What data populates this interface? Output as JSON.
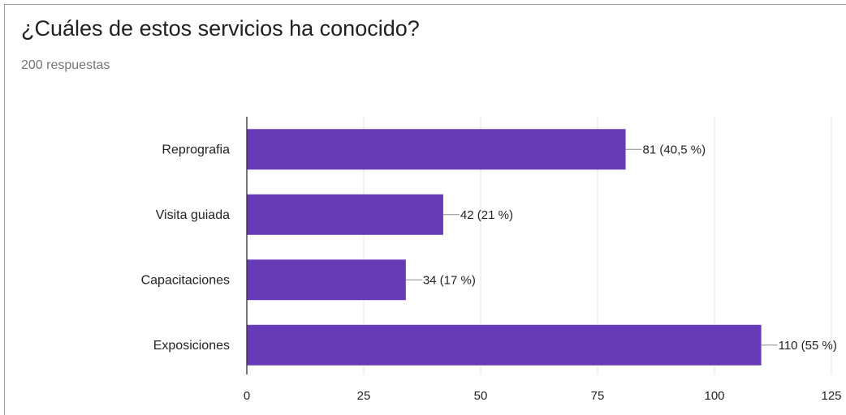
{
  "header": {
    "title": "¿Cuáles de estos servicios ha conocido?",
    "responses": "200 respuestas"
  },
  "colors": {
    "bar": "#673ab7",
    "grid": "#e6e6e6",
    "axis": "#333333",
    "text": "#222222"
  },
  "chart_data": {
    "type": "bar",
    "orientation": "horizontal",
    "categories": [
      "Reprografia",
      "Visita guiada",
      "Capacitaciones",
      "Exposiciones"
    ],
    "values": [
      81,
      42,
      34,
      110
    ],
    "data_labels": [
      "81 (40,5 %)",
      "42 (21 %)",
      "34 (17 %)",
      "110 (55 %)"
    ],
    "xlim": [
      0,
      125
    ],
    "xticks": [
      0,
      25,
      50,
      75,
      100,
      125
    ],
    "grid": true,
    "legend": "none"
  }
}
